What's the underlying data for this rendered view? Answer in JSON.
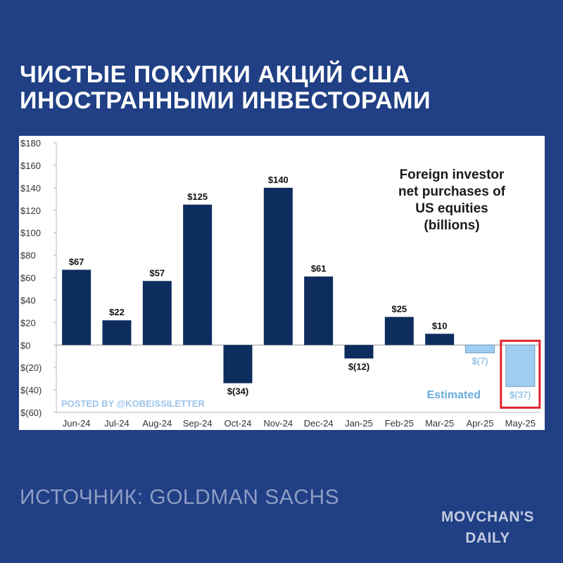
{
  "headline": {
    "line1": "ЧИСТЫЕ ПОКУПКИ АКЦИЙ США",
    "line2": "ИНОСТРАННЫМИ ИНВЕСТОРАМИ"
  },
  "source_text": "ИСТОЧНИК: GOLDMAN SACHS",
  "brand": {
    "line1": "MOVCHAN'S",
    "line2": "DAILY"
  },
  "colors": {
    "page_background": "#203f84",
    "bar_actual": "#0d2d5e",
    "bar_estimated": "#9ecdf0",
    "estimated_text": "#6aaedc",
    "highlight_box": "#e0242d",
    "watermark_text": "#9dc3e8"
  },
  "chart_data": {
    "type": "bar",
    "title": "Foreign investor net purchases of US equities (billions)",
    "title_lines": [
      "Foreign investor",
      "net purchases of",
      "US equities",
      "(billions)"
    ],
    "categories": [
      "Jun-24",
      "Jul-24",
      "Aug-24",
      "Sep-24",
      "Oct-24",
      "Nov-24",
      "Dec-24",
      "Jan-25",
      "Feb-25",
      "Mar-25",
      "Apr-25",
      "May-25"
    ],
    "values": [
      67,
      22,
      57,
      125,
      -34,
      140,
      61,
      -12,
      25,
      10,
      -7,
      -37
    ],
    "value_labels": [
      "$67",
      "$22",
      "$57",
      "$125",
      "$(34)",
      "$140",
      "$61",
      "$(12)",
      "$25",
      "$10",
      "$(7)",
      "$(37)"
    ],
    "estimated": [
      false,
      false,
      false,
      false,
      false,
      false,
      false,
      false,
      false,
      false,
      true,
      true
    ],
    "highlighted": [
      false,
      false,
      false,
      false,
      false,
      false,
      false,
      false,
      false,
      false,
      false,
      true
    ],
    "y_ticks": [
      180,
      160,
      140,
      120,
      100,
      80,
      60,
      40,
      20,
      0,
      -20,
      -40,
      -60
    ],
    "y_tick_labels": [
      "$180",
      "$160",
      "$140",
      "$120",
      "$100",
      "$80",
      "$60",
      "$40",
      "$20",
      "$0",
      "$(20)",
      "$(40)",
      "$(60)"
    ],
    "ylim": [
      -60,
      180
    ],
    "xlabel": "",
    "ylabel": "",
    "grid": false,
    "annotations": {
      "estimated_label": "Estimated",
      "watermark": "POSTED BY @KOBEISSILETTER"
    }
  }
}
